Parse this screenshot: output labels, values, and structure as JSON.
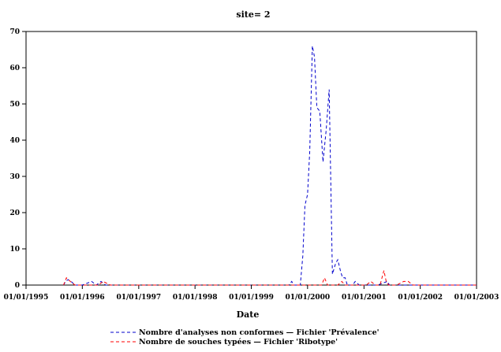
{
  "chart_data": {
    "type": "line",
    "title": "site= 2",
    "xlabel": "Date",
    "ylabel": "",
    "xlim": [
      "1995-01-01",
      "2003-01-01"
    ],
    "ylim": [
      0,
      70
    ],
    "x_ticks": [
      "01/01/1995",
      "01/01/1996",
      "01/01/1997",
      "01/01/1998",
      "01/01/1999",
      "01/01/2000",
      "01/01/2001",
      "01/01/2002",
      "01/01/2003"
    ],
    "y_ticks": [
      0,
      10,
      20,
      30,
      40,
      50,
      60,
      70
    ],
    "grid": false,
    "legend_position": "bottom",
    "series": [
      {
        "name": "Nombre d'analyses non conformes  —  Fichier 'Prévalence'",
        "color": "#0000cc",
        "dash": "dashed",
        "x": [
          "1995-09-01",
          "1995-09-15",
          "1995-10-01",
          "1995-10-20",
          "1995-11-15",
          "1996-01-01",
          "1996-03-01",
          "1996-04-01",
          "1996-05-01",
          "1996-06-01",
          "1996-08-01",
          "1997-01-01",
          "1998-01-01",
          "1999-01-01",
          "1999-09-01",
          "1999-09-20",
          "1999-10-05",
          "1999-11-01",
          "1999-11-15",
          "1999-12-01",
          "1999-12-15",
          "2000-01-01",
          "2000-01-15",
          "2000-02-01",
          "2000-02-15",
          "2000-03-01",
          "2000-03-20",
          "2000-04-10",
          "2000-05-01",
          "2000-05-20",
          "2000-06-10",
          "2000-07-01",
          "2000-07-15",
          "2000-08-01",
          "2000-08-15",
          "2000-09-01",
          "2000-09-15",
          "2000-10-01",
          "2000-10-20",
          "2000-11-05",
          "2000-12-01",
          "2001-01-01",
          "2001-04-01",
          "2001-06-01",
          "2001-06-15",
          "2001-07-01",
          "2001-09-01",
          "2002-01-01",
          "2002-06-01",
          "2003-01-01"
        ],
        "values": [
          0,
          1,
          1.5,
          1,
          0,
          0,
          1,
          0,
          1,
          0,
          0,
          0,
          0,
          0,
          0,
          1,
          0,
          0,
          0,
          8,
          22,
          25,
          37,
          66,
          63,
          49,
          48,
          34,
          43,
          54,
          3,
          6,
          7,
          4,
          2,
          2,
          0,
          0,
          0,
          1,
          0,
          0,
          0,
          1,
          0,
          0,
          0,
          0,
          0,
          0
        ]
      },
      {
        "name": "Nombre de souches typées  —  Fichier 'Ribotype'",
        "color": "#ff0000",
        "dash": "dashed",
        "x": [
          "1995-09-01",
          "1995-09-20",
          "1995-10-15",
          "1995-11-15",
          "1996-01-01",
          "1996-03-15",
          "1996-04-15",
          "1996-05-15",
          "1996-07-01",
          "1997-01-01",
          "1998-01-01",
          "1999-01-01",
          "2000-01-01",
          "2000-04-01",
          "2000-04-20",
          "2000-05-10",
          "2000-06-01",
          "2000-07-15",
          "2000-08-10",
          "2000-09-01",
          "2000-11-15",
          "2000-12-15",
          "2001-01-15",
          "2001-02-15",
          "2001-03-15",
          "2001-04-15",
          "2001-05-10",
          "2001-05-25",
          "2001-06-10",
          "2001-07-01",
          "2001-08-01",
          "2001-09-15",
          "2001-10-15",
          "2001-11-15",
          "2002-01-01",
          "2002-06-01",
          "2003-01-01"
        ],
        "values": [
          0,
          2,
          1,
          0,
          0,
          0,
          0,
          1,
          0,
          0,
          0,
          0,
          0,
          0,
          2,
          0,
          0,
          0,
          1,
          0,
          0,
          0,
          0,
          1,
          0,
          0,
          4,
          1,
          0,
          0,
          0,
          1,
          1,
          0,
          0,
          0,
          0
        ]
      }
    ]
  }
}
